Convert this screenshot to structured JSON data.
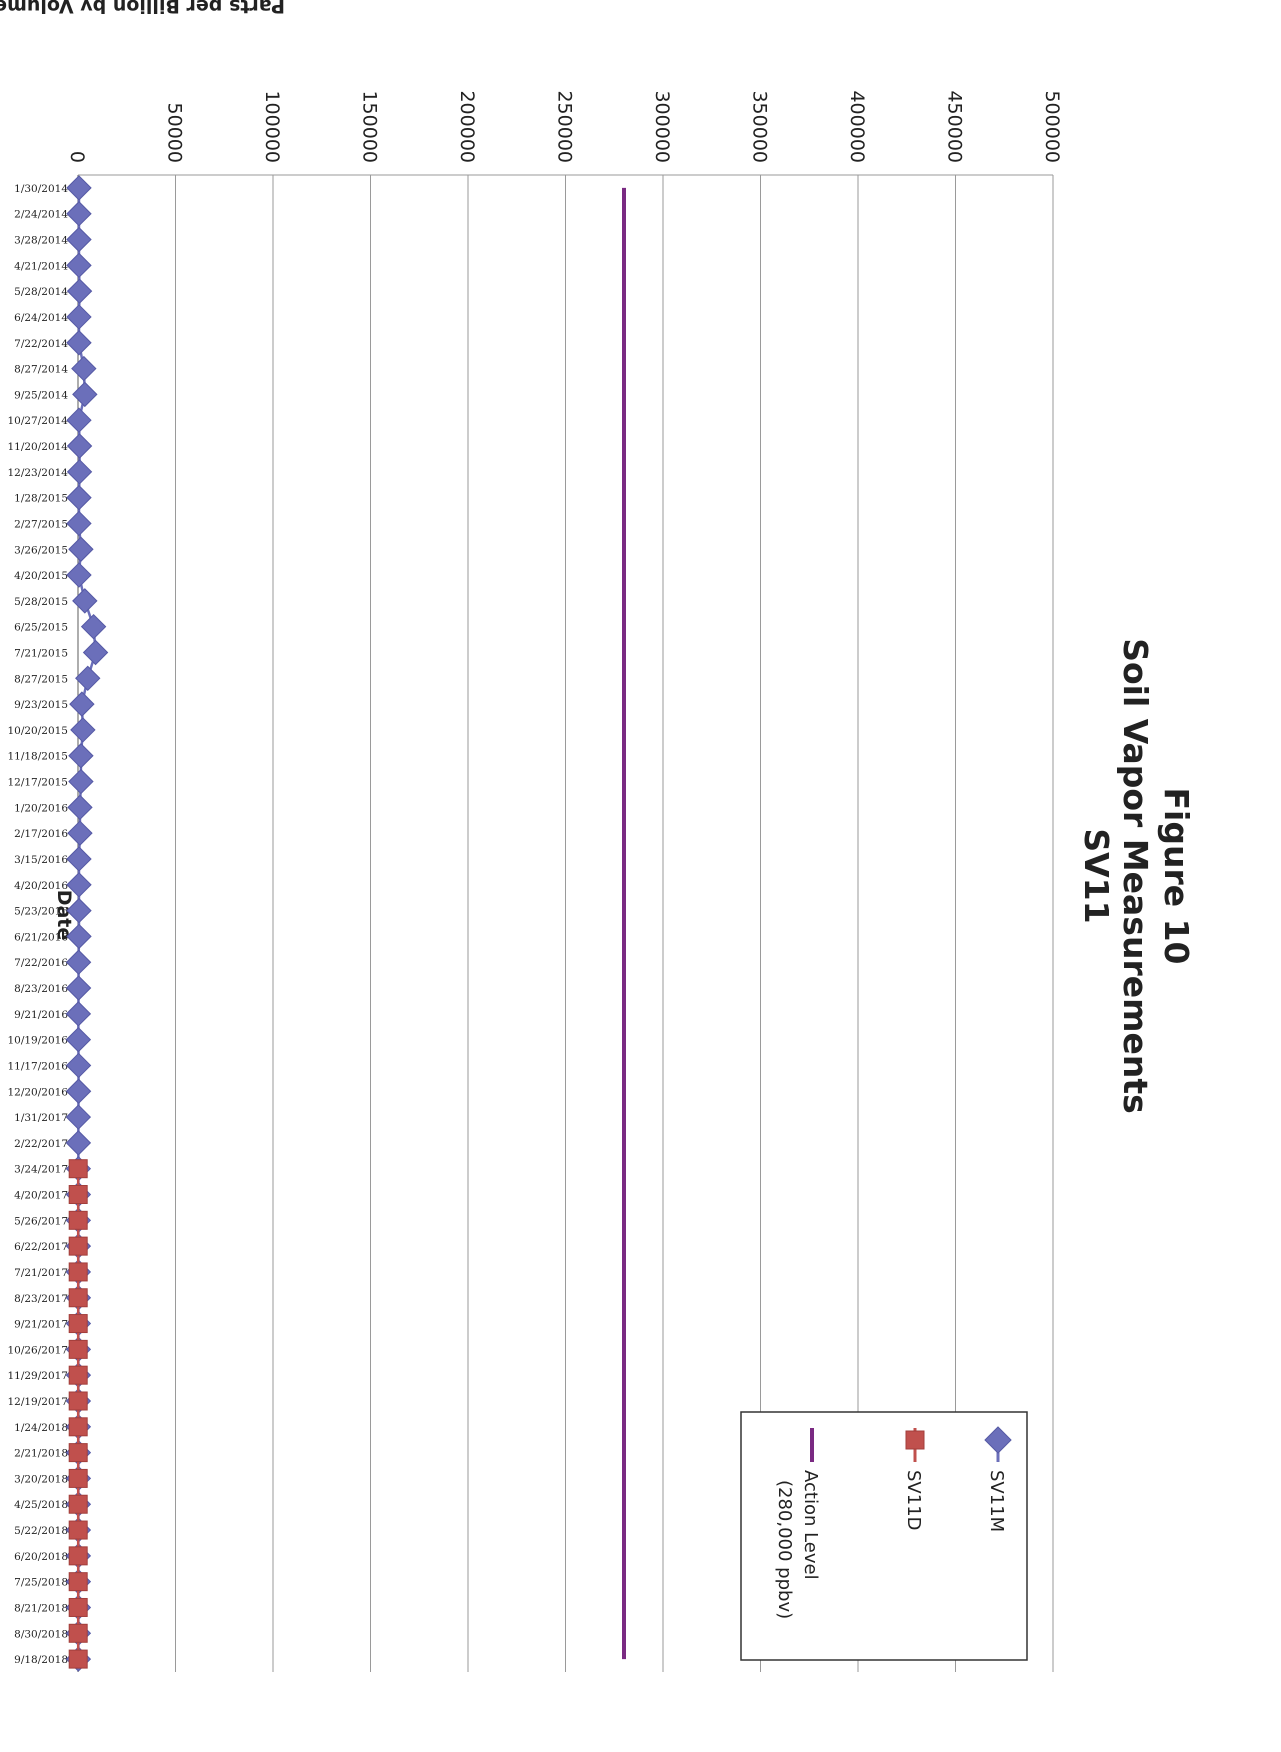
{
  "chart_data": {
    "type": "line",
    "title": "Figure 10",
    "subtitle": [
      "Soil Vapor Measurements",
      "SV11"
    ],
    "xlabel": "Date",
    "ylabel": "Parts per Billion by Volume (ppbv)",
    "ylim": [
      0,
      500000
    ],
    "yticks": [
      "0",
      "50000",
      "100000",
      "150000",
      "200000",
      "250000",
      "300000",
      "350000",
      "400000",
      "450000",
      "500000"
    ],
    "grid": true,
    "legend_position": "bottom-right",
    "categories": [
      "1/30/2014",
      "2/24/2014",
      "3/28/2014",
      "4/21/2014",
      "5/28/2014",
      "6/24/2014",
      "7/22/2014",
      "8/27/2014",
      "9/25/2014",
      "10/27/2014",
      "11/20/2014",
      "12/23/2014",
      "1/28/2015",
      "2/27/2015",
      "3/26/2015",
      "4/20/2015",
      "5/28/2015",
      "6/25/2015",
      "7/21/2015",
      "8/27/2015",
      "9/23/2015",
      "10/20/2015",
      "11/18/2015",
      "12/17/2015",
      "1/20/2016",
      "2/17/2016",
      "3/15/2016",
      "4/20/2016",
      "5/23/2016",
      "6/21/2016",
      "7/22/2016",
      "8/23/2016",
      "9/21/2016",
      "10/19/2016",
      "11/17/2016",
      "12/20/2016",
      "1/31/2017",
      "2/22/2017",
      "3/24/2017",
      "4/20/2017",
      "5/26/2017",
      "6/22/2017",
      "7/21/2017",
      "8/23/2017",
      "9/21/2017",
      "10/26/2017",
      "11/29/2017",
      "12/19/2017",
      "1/24/2018",
      "2/21/2018",
      "3/20/2018",
      "4/25/2018",
      "5/22/2018",
      "6/20/2018",
      "7/25/2018",
      "8/21/2018",
      "8/30/2018",
      "9/18/2018"
    ],
    "series": [
      {
        "name": "SV11M",
        "color": "#6b6fba",
        "marker": "diamond",
        "values": [
          500,
          500,
          500,
          500,
          800,
          500,
          500,
          3000,
          3500,
          500,
          800,
          800,
          500,
          500,
          1500,
          500,
          3500,
          8000,
          9000,
          5000,
          2000,
          2500,
          1500,
          1500,
          1000,
          1000,
          500,
          500,
          500,
          500,
          300,
          300,
          200,
          200,
          300,
          300,
          200,
          200,
          200,
          200,
          200,
          200,
          200,
          200,
          200,
          200,
          200,
          200,
          200,
          200,
          200,
          200,
          200,
          200,
          200,
          200,
          200,
          200
        ]
      },
      {
        "name": "SV11D",
        "color": "#c0504d",
        "marker": "square",
        "values": [
          null,
          null,
          null,
          null,
          null,
          null,
          null,
          null,
          null,
          null,
          null,
          null,
          null,
          null,
          null,
          null,
          null,
          null,
          null,
          null,
          null,
          null,
          null,
          null,
          null,
          null,
          null,
          null,
          null,
          null,
          null,
          null,
          null,
          null,
          null,
          null,
          null,
          null,
          100,
          100,
          100,
          100,
          100,
          100,
          100,
          100,
          100,
          100,
          100,
          100,
          100,
          100,
          100,
          100,
          100,
          100,
          100,
          100
        ]
      },
      {
        "name": "Action Level (280,000 ppbv)",
        "label_lines": [
          "Action Level",
          "(280,000 ppbv)"
        ],
        "color": "#7a2a82",
        "marker": "none",
        "value": 280000
      }
    ]
  }
}
